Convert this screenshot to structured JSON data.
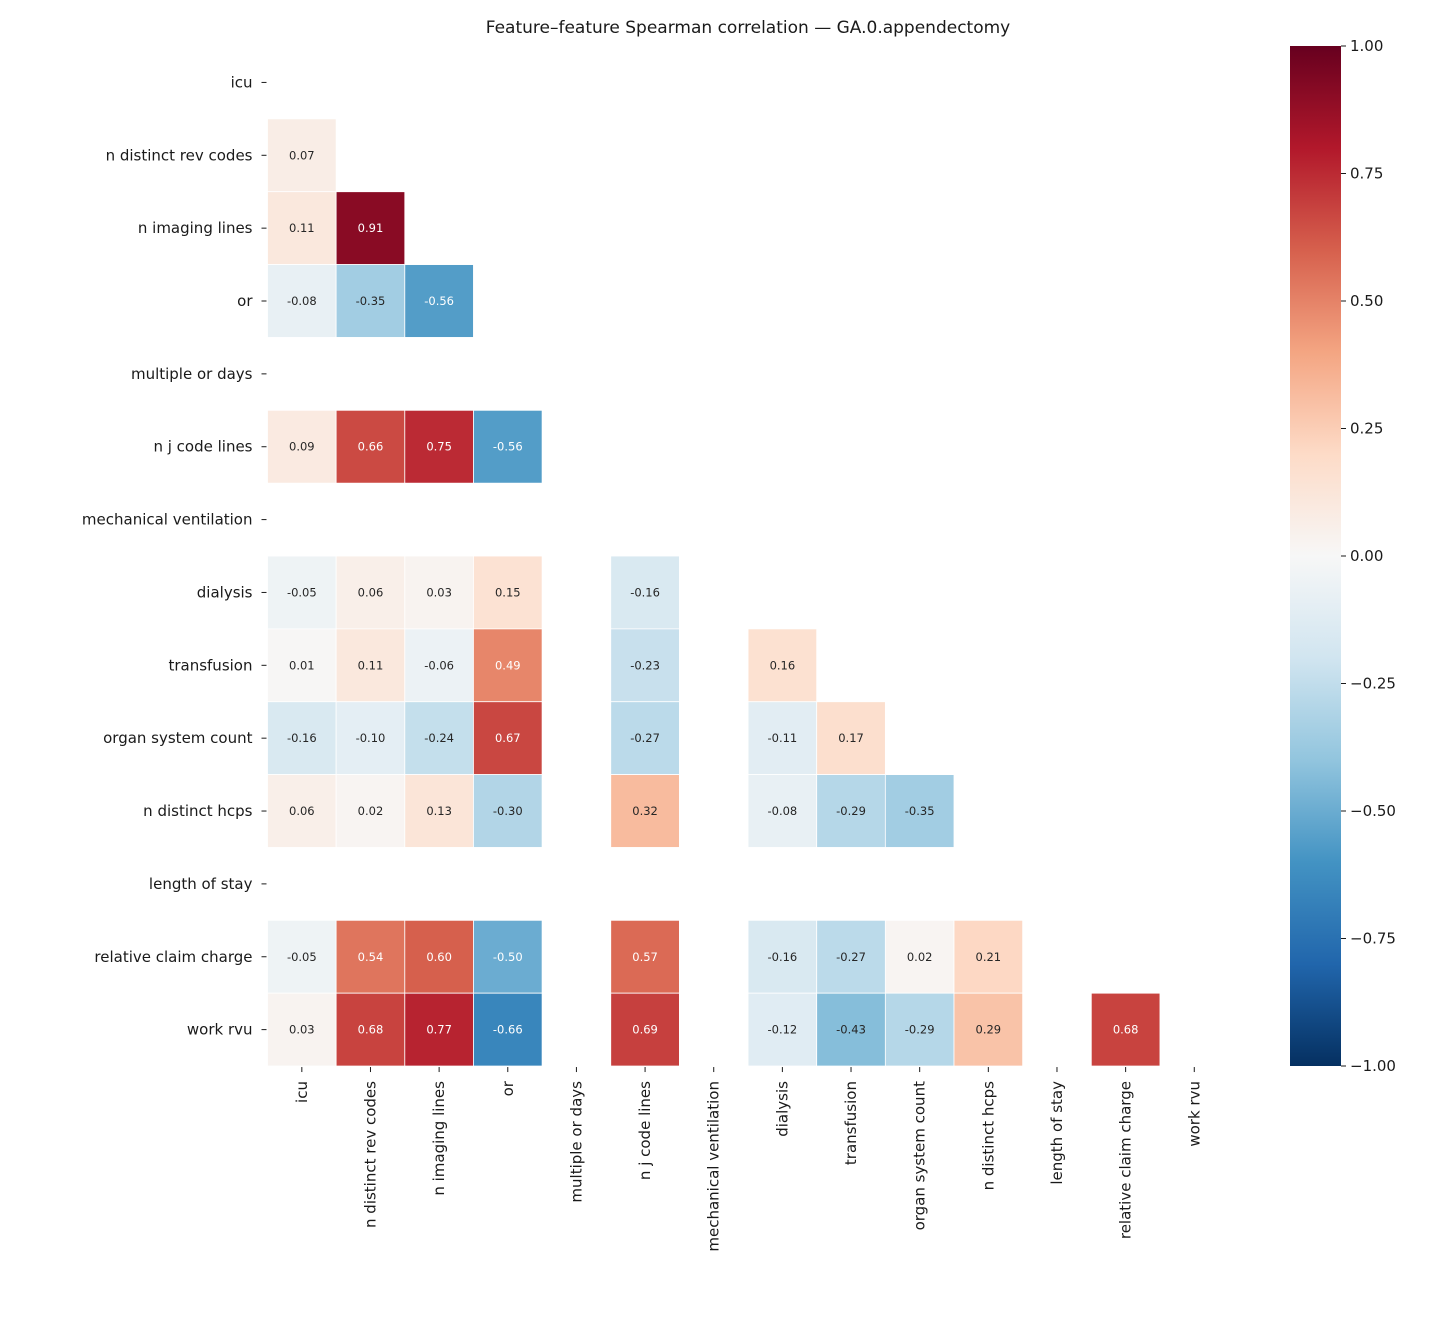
{
  "chart_data": {
    "type": "heatmap",
    "title": "Feature–feature Spearman correlation — GA.0.appendectomy",
    "features": [
      "icu",
      "n distinct rev codes",
      "n imaging lines",
      "or",
      "multiple or days",
      "n j code lines",
      "mechanical ventilation",
      "dialysis",
      "transfusion",
      "organ system count",
      "n distinct hcps",
      "length of stay",
      "relative claim charge",
      "work rvu"
    ],
    "mask": "upper-triangle-and-diagonal",
    "matrix_lower": [
      [],
      [
        0.07
      ],
      [
        0.11,
        0.91
      ],
      [
        -0.08,
        -0.35,
        -0.56
      ],
      [
        null,
        null,
        null,
        null
      ],
      [
        0.09,
        0.66,
        0.75,
        -0.56,
        null
      ],
      [
        null,
        null,
        null,
        null,
        null,
        null
      ],
      [
        -0.05,
        0.06,
        0.03,
        0.15,
        null,
        -0.16,
        null
      ],
      [
        0.01,
        0.11,
        -0.06,
        0.49,
        null,
        -0.23,
        null,
        0.16
      ],
      [
        -0.16,
        -0.1,
        -0.24,
        0.67,
        null,
        -0.27,
        null,
        -0.11,
        0.17
      ],
      [
        0.06,
        0.02,
        0.13,
        -0.3,
        null,
        0.32,
        null,
        -0.08,
        -0.29,
        -0.35
      ],
      [
        null,
        null,
        null,
        null,
        null,
        null,
        null,
        null,
        null,
        null,
        null
      ],
      [
        -0.05,
        0.54,
        0.6,
        -0.5,
        null,
        0.57,
        null,
        -0.16,
        -0.27,
        0.02,
        0.21,
        null
      ],
      [
        0.03,
        0.68,
        0.77,
        -0.66,
        null,
        0.69,
        null,
        -0.12,
        -0.43,
        -0.29,
        0.29,
        null,
        0.68
      ]
    ],
    "colormap": "RdBu_r",
    "colormap_stops": [
      "#053061",
      "#2166ac",
      "#4393c3",
      "#92c5de",
      "#d1e5f0",
      "#f7f7f7",
      "#fddbc7",
      "#f4a582",
      "#d6604d",
      "#b2182b",
      "#67001f"
    ],
    "vmin": -1.0,
    "vmax": 1.0,
    "colorbar_ticks": [
      "1.00",
      "0.75",
      "0.50",
      "0.25",
      "0.00",
      "−0.25",
      "−0.50",
      "−0.75",
      "−1.00"
    ],
    "colorbar_tick_values": [
      1,
      0.75,
      0.5,
      0.25,
      0,
      -0.25,
      -0.5,
      -0.75,
      -1
    ],
    "value_format": "2 decimals"
  }
}
